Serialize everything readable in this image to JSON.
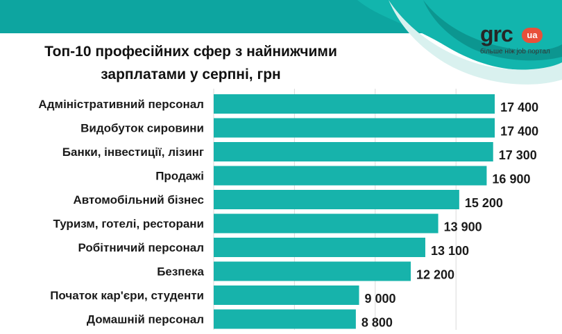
{
  "header": {
    "title_line1": "Топ-10 професійних сфер з найнижчими",
    "title_line2": "зарплатами у серпні, грн"
  },
  "logo": {
    "brand": "grc",
    "badge": "ua",
    "tagline": "більше ніж job портал"
  },
  "colors": {
    "bar": "#17b3ab",
    "accent": "#0da5a0",
    "logo_badge": "#e8503a"
  },
  "chart_data": {
    "type": "bar",
    "orientation": "horizontal",
    "title": "Топ-10 професійних сфер з найнижчими зарплатами у серпні, грн",
    "categories": [
      "Адміністративний персонал",
      "Видобуток сировини",
      "Банки, інвестиції, лізинг",
      "Продажі",
      "Автомобільний бізнес",
      "Туризм, готелі, ресторани",
      "Робітничий персонал",
      "Безпека",
      "Початок кар'єри, студенти",
      "Домашній персонал"
    ],
    "values": [
      17400,
      17400,
      17300,
      16900,
      15200,
      13900,
      13100,
      12200,
      9000,
      8800
    ],
    "value_labels": [
      "17 400",
      "17 400",
      "17 300",
      "16 900",
      "15 200",
      "13 900",
      "13 100",
      "12 200",
      "9 000",
      "8 800"
    ],
    "xlim": [
      0,
      18000
    ],
    "grid": true,
    "legend": "none"
  }
}
